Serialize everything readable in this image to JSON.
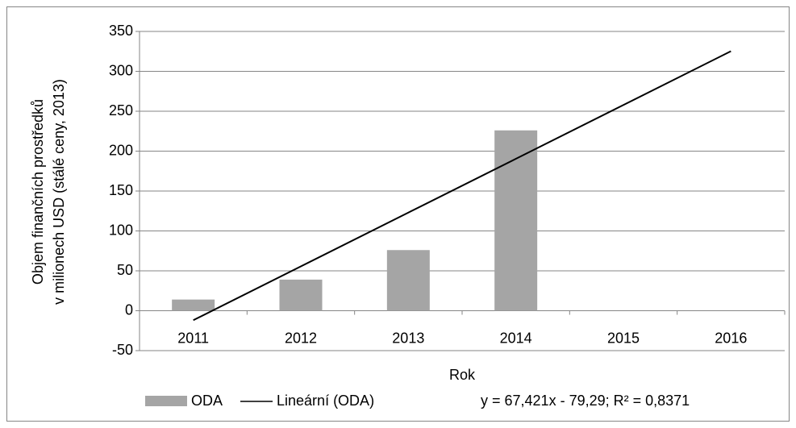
{
  "chart_data": {
    "type": "bar",
    "categories": [
      "2011",
      "2012",
      "2013",
      "2014",
      "2015",
      "2016"
    ],
    "series": [
      {
        "name": "ODA",
        "type": "bar",
        "color": "#a5a5a5",
        "values": [
          14,
          39,
          76,
          226,
          null,
          null
        ]
      },
      {
        "name": "Lineární (ODA)",
        "type": "line",
        "color": "#000000",
        "values": [
          -11.87,
          55.55,
          122.97,
          190.39,
          257.81,
          325.24
        ]
      }
    ],
    "y_label": [
      "Objem finančních prostředků",
      "v milionech USD (stálé ceny, 2013)"
    ],
    "x_label": "Rok",
    "annotation": "y = 67,421x - 79,29; R² = 0,8371",
    "ylim": [
      -50,
      350
    ],
    "yticks": [
      -50,
      0,
      50,
      100,
      150,
      200,
      250,
      300,
      350
    ],
    "grid": true,
    "legend": "bottom"
  }
}
